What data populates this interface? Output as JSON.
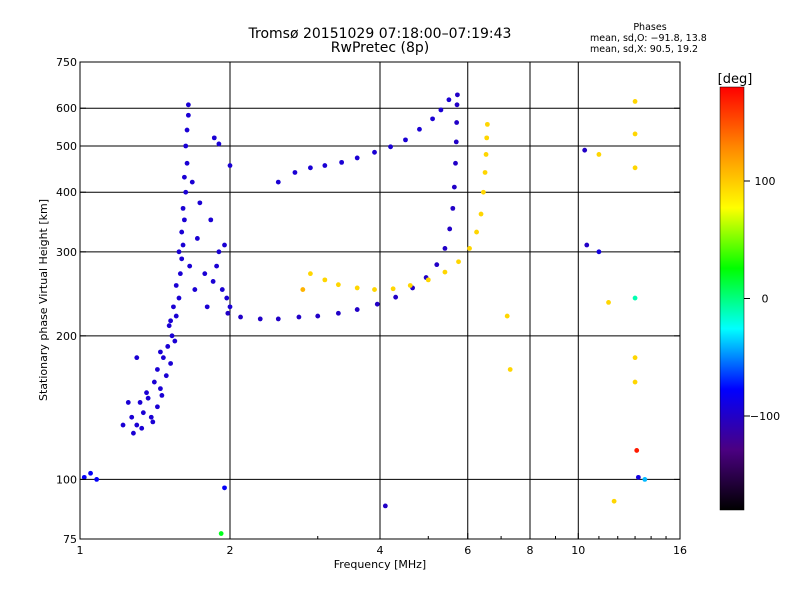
{
  "header": {
    "title_line1": "Tromsø 20151029 07:18:00–07:19:43",
    "title_line2": "RwPretec (8p)"
  },
  "stats": {
    "heading": "Phases",
    "o_line": "mean, sd,O: −91.8, 13.8",
    "x_line": "mean, sd,X:  90.5, 19.2"
  },
  "colorbar": {
    "label": "[deg]",
    "range": [
      -180,
      180
    ],
    "ticks": [
      {
        "value": 100,
        "label": "100"
      },
      {
        "value": 0,
        "label": "0"
      },
      {
        "value": -100,
        "label": "−100"
      }
    ],
    "colors": [
      "#000000",
      "#4b0082",
      "#0000ff",
      "#00ffff",
      "#00ff00",
      "#ffff00",
      "#ff8800",
      "#ff0000"
    ]
  },
  "chart_data": {
    "type": "scatter",
    "xlabel": "Frequency [MHz]",
    "ylabel": "Stationary phase Virtual Height [km]",
    "x_scale": "log",
    "y_scale": "log",
    "xlim": [
      1,
      16
    ],
    "ylim": [
      75,
      750
    ],
    "x_ticks": [
      {
        "value": 1,
        "label": "1"
      },
      {
        "value": 2,
        "label": "2"
      },
      {
        "value": 4,
        "label": "4"
      },
      {
        "value": 6,
        "label": "6"
      },
      {
        "value": 8,
        "label": "8"
      },
      {
        "value": 10,
        "label": "10"
      },
      {
        "value": 16,
        "label": "16"
      }
    ],
    "x_grid": [
      2,
      4,
      6,
      8,
      10
    ],
    "y_ticks": [
      {
        "value": 75,
        "label": "75"
      },
      {
        "value": 100,
        "label": "100"
      },
      {
        "value": 200,
        "label": "200"
      },
      {
        "value": 300,
        "label": "300"
      },
      {
        "value": 400,
        "label": "400"
      },
      {
        "value": 500,
        "label": "500"
      },
      {
        "value": 600,
        "label": "600"
      },
      {
        "value": 750,
        "label": "750"
      }
    ],
    "y_grid": [
      100,
      200,
      300,
      400,
      500,
      600
    ],
    "grid": true,
    "color_key": "phase [deg]",
    "series": [
      {
        "trace": "E-region cloud",
        "points": [
          [
            1.28,
            125,
            -95
          ],
          [
            1.3,
            130,
            -95
          ],
          [
            1.27,
            135,
            -95
          ],
          [
            1.34,
            138,
            -95
          ],
          [
            1.32,
            145,
            -95
          ],
          [
            1.4,
            132,
            -95
          ],
          [
            1.37,
            148,
            -95
          ],
          [
            1.36,
            152,
            -95
          ],
          [
            1.43,
            142,
            -95
          ],
          [
            1.41,
            160,
            -95
          ],
          [
            1.45,
            155,
            -95
          ],
          [
            1.43,
            170,
            -95
          ],
          [
            1.49,
            165,
            -95
          ],
          [
            1.47,
            180,
            -95
          ],
          [
            1.52,
            175,
            -95
          ],
          [
            1.5,
            190,
            -95
          ],
          [
            1.53,
            200,
            -95
          ],
          [
            1.51,
            210,
            -95
          ],
          [
            1.56,
            220,
            -95
          ],
          [
            1.54,
            230,
            -95
          ],
          [
            1.58,
            240,
            -95
          ],
          [
            1.56,
            255,
            -95
          ],
          [
            1.59,
            270,
            -95
          ],
          [
            1.6,
            290,
            -95
          ],
          [
            1.61,
            310,
            -95
          ],
          [
            1.6,
            330,
            -95
          ],
          [
            1.62,
            350,
            -95
          ],
          [
            1.61,
            370,
            -95
          ],
          [
            1.63,
            400,
            -95
          ],
          [
            1.62,
            430,
            -95
          ],
          [
            1.64,
            460,
            -95
          ],
          [
            1.63,
            500,
            -95
          ],
          [
            1.64,
            540,
            -95
          ],
          [
            1.65,
            580,
            -95
          ],
          [
            1.65,
            610,
            -95
          ],
          [
            1.55,
            195,
            -95
          ],
          [
            1.46,
            150,
            -95
          ],
          [
            1.33,
            128,
            -95
          ],
          [
            1.39,
            135,
            -95
          ],
          [
            1.45,
            185,
            -95
          ],
          [
            1.58,
            300,
            -95
          ],
          [
            1.66,
            280,
            -95
          ],
          [
            1.7,
            250,
            -95
          ],
          [
            1.74,
            380,
            -95
          ],
          [
            1.72,
            320,
            -95
          ],
          [
            1.68,
            420,
            -95
          ],
          [
            1.3,
            180,
            -95
          ],
          [
            1.22,
            130,
            -95
          ],
          [
            1.25,
            145,
            -95
          ],
          [
            1.52,
            215,
            -95
          ]
        ]
      },
      {
        "trace": "Lower spread",
        "points": [
          [
            1.8,
            230,
            -95
          ],
          [
            1.85,
            260,
            -95
          ],
          [
            1.9,
            300,
            -95
          ],
          [
            1.88,
            280,
            -95
          ],
          [
            1.93,
            250,
            -95
          ],
          [
            1.97,
            240,
            -95
          ],
          [
            1.95,
            310,
            -95
          ],
          [
            2.0,
            230,
            -95
          ],
          [
            1.83,
            350,
            -95
          ],
          [
            1.86,
            520,
            -95
          ],
          [
            1.9,
            505,
            -95
          ],
          [
            2.0,
            455,
            -95
          ],
          [
            1.78,
            270,
            -95
          ]
        ]
      },
      {
        "trace": "F2 O-mode",
        "points": [
          [
            1.98,
            223,
            -100
          ],
          [
            2.1,
            219,
            -100
          ],
          [
            2.3,
            217,
            -100
          ],
          [
            2.5,
            217,
            -100
          ],
          [
            2.75,
            219,
            -100
          ],
          [
            3.0,
            220,
            -100
          ],
          [
            3.3,
            223,
            -100
          ],
          [
            3.6,
            227,
            -100
          ],
          [
            3.95,
            233,
            -100
          ],
          [
            4.3,
            241,
            -100
          ],
          [
            4.65,
            252,
            -100
          ],
          [
            4.95,
            265,
            -100
          ],
          [
            5.2,
            282,
            -100
          ],
          [
            5.4,
            305,
            -100
          ],
          [
            5.52,
            335,
            -100
          ],
          [
            5.6,
            370,
            -100
          ],
          [
            5.64,
            410,
            -100
          ],
          [
            5.67,
            460,
            -100
          ],
          [
            5.69,
            510,
            -100
          ],
          [
            5.7,
            560,
            -100
          ],
          [
            5.71,
            610,
            -100
          ],
          [
            5.72,
            640,
            -100
          ]
        ]
      },
      {
        "trace": "Upper O-mode",
        "points": [
          [
            2.5,
            420,
            -95
          ],
          [
            2.7,
            440,
            -95
          ],
          [
            2.9,
            450,
            -95
          ],
          [
            3.1,
            455,
            -95
          ],
          [
            3.35,
            462,
            -95
          ],
          [
            3.6,
            472,
            -95
          ],
          [
            3.9,
            485,
            -95
          ],
          [
            4.2,
            498,
            -95
          ],
          [
            4.5,
            515,
            -95
          ],
          [
            4.8,
            542,
            -95
          ],
          [
            5.1,
            570,
            -95
          ],
          [
            5.3,
            595,
            -95
          ],
          [
            5.5,
            625,
            -95
          ]
        ]
      },
      {
        "trace": "F2 X-mode",
        "points": [
          [
            2.9,
            270,
            95
          ],
          [
            3.1,
            262,
            95
          ],
          [
            3.3,
            256,
            95
          ],
          [
            3.6,
            252,
            95
          ],
          [
            3.9,
            250,
            95
          ],
          [
            4.25,
            251,
            95
          ],
          [
            4.6,
            255,
            95
          ],
          [
            5.0,
            262,
            95
          ],
          [
            5.4,
            272,
            95
          ],
          [
            5.75,
            286,
            95
          ],
          [
            6.05,
            305,
            95
          ],
          [
            6.25,
            330,
            95
          ],
          [
            6.38,
            360,
            95
          ],
          [
            6.45,
            400,
            95
          ],
          [
            6.5,
            440,
            95
          ],
          [
            6.53,
            480,
            95
          ],
          [
            6.55,
            520,
            95
          ],
          [
            6.57,
            555,
            95
          ]
        ]
      },
      {
        "trace": "Isolated echoes",
        "points": [
          [
            1.05,
            103,
            -80
          ],
          [
            1.02,
            101,
            -80
          ],
          [
            1.08,
            100,
            -80
          ],
          [
            1.95,
            96,
            -80
          ],
          [
            1.92,
            77,
            20
          ],
          [
            4.1,
            88,
            -100
          ],
          [
            7.2,
            220,
            95
          ],
          [
            7.3,
            170,
            95
          ],
          [
            10.3,
            490,
            -100
          ],
          [
            10.4,
            310,
            -100
          ],
          [
            11.0,
            480,
            95
          ],
          [
            11.5,
            235,
            95
          ],
          [
            11.8,
            90,
            95
          ],
          [
            13.0,
            620,
            95
          ],
          [
            13.0,
            530,
            95
          ],
          [
            13.0,
            450,
            95
          ],
          [
            13.0,
            180,
            95
          ],
          [
            13.0,
            160,
            95
          ],
          [
            13.1,
            115,
            170
          ],
          [
            13.2,
            101,
            -90
          ],
          [
            13.0,
            240,
            -10
          ],
          [
            13.6,
            100,
            -40
          ],
          [
            11.0,
            300,
            -90
          ],
          [
            2.8,
            250,
            110
          ]
        ]
      }
    ]
  }
}
